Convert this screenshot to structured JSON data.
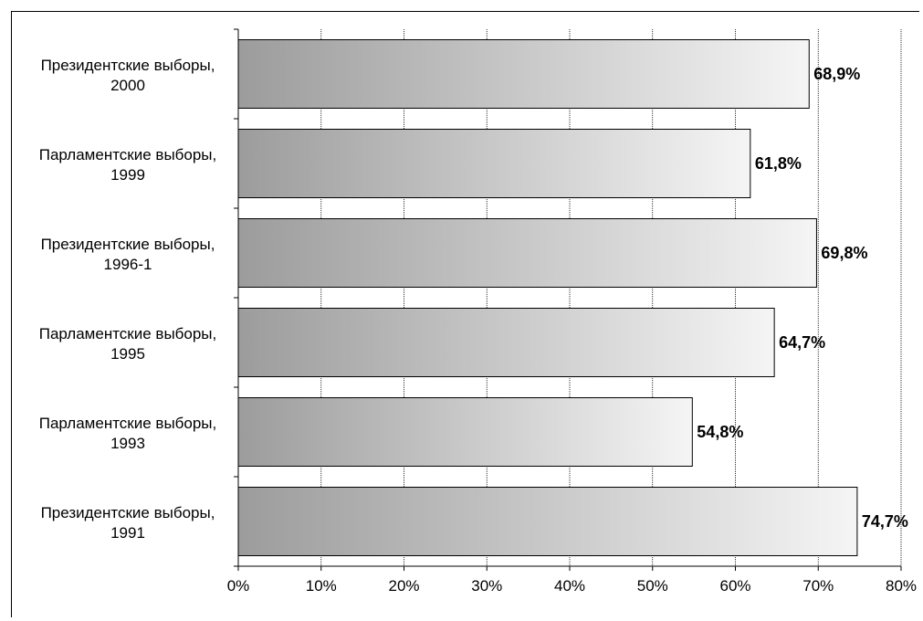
{
  "chart_data": {
    "type": "bar",
    "orientation": "horizontal",
    "categories": [
      [
        "Президентские выборы,",
        "2000"
      ],
      [
        "Парламентские выборы,",
        "1999"
      ],
      [
        "Президентские выборы,",
        "1996-1"
      ],
      [
        "Парламентские выборы,",
        "1995"
      ],
      [
        "Парламентские выборы,",
        "1993"
      ],
      [
        "Президентские выборы,",
        "1991"
      ]
    ],
    "values": [
      68.9,
      61.8,
      69.8,
      64.7,
      54.8,
      74.7
    ],
    "value_labels": [
      "68,9%",
      "61,8%",
      "69,8%",
      "64,7%",
      "54,8%",
      "74,7%"
    ],
    "xlim": [
      0,
      80
    ],
    "xticks": [
      0,
      10,
      20,
      30,
      40,
      50,
      60,
      70,
      80
    ],
    "xtick_labels": [
      "0%",
      "10%",
      "20%",
      "30%",
      "40%",
      "50%",
      "60%",
      "70%",
      "80%"
    ],
    "grid": "vertical",
    "legend": "none",
    "bar_gradient": [
      "#9c9c9c",
      "#f5f5f5"
    ]
  }
}
